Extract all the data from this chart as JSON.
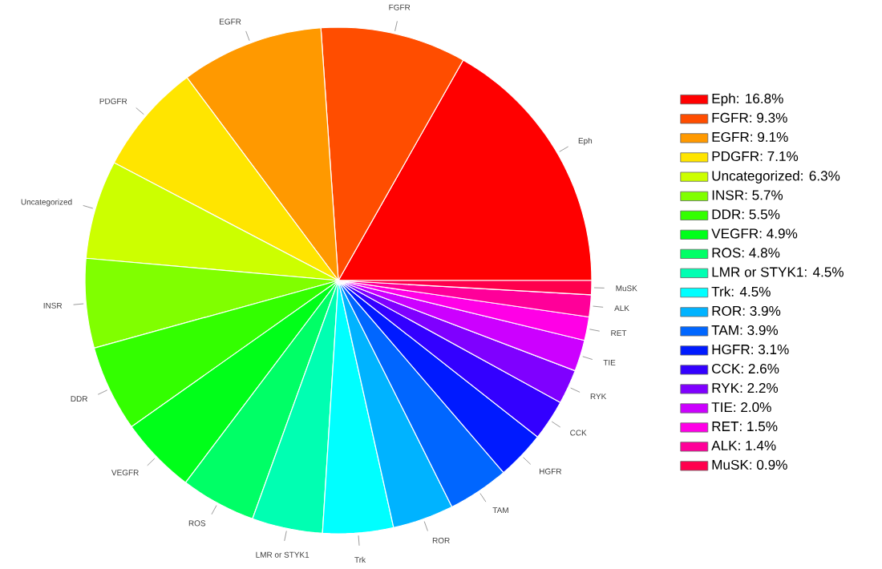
{
  "chart_data": {
    "type": "pie",
    "legend": "right",
    "categories": [
      "Eph",
      "FGFR",
      "EGFR",
      "PDGFR",
      "Uncategorized",
      "INSR",
      "DDR",
      "VEGFR",
      "ROS",
      "LMR or STYK1",
      "Trk",
      "ROR",
      "TAM",
      "HGFR",
      "CCK",
      "RYK",
      "TIE",
      "RET",
      "ALK",
      "MuSK"
    ],
    "values": [
      16.8,
      9.3,
      9.1,
      7.1,
      6.3,
      5.7,
      5.5,
      4.9,
      4.8,
      4.5,
      4.5,
      3.9,
      3.9,
      3.1,
      2.6,
      2.2,
      2.0,
      1.5,
      1.4,
      0.9
    ],
    "value_labels": [
      ": 16.8%",
      ": 9.3%",
      ": 9.1%",
      ": 7.1%",
      ": 6.3%",
      ": 5.7%",
      ": 5.5%",
      ": 4.9%",
      ": 4.8%",
      ": 4.5%",
      ": 4.5%",
      ": 3.9%",
      ": 3.9%",
      ": 3.1%",
      ": 2.6%",
      ": 2.2%",
      ": 2.0%",
      ": 1.5%",
      ": 1.4%",
      ": 0.9%"
    ],
    "colors": [
      "#ff0000",
      "#ff4d00",
      "#ff9900",
      "#ffe500",
      "#ccff00",
      "#80ff00",
      "#33ff00",
      "#00ff19",
      "#00ff66",
      "#00ffb2",
      "#00ffff",
      "#00b3ff",
      "#0066ff",
      "#001aff",
      "#3300ff",
      "#7f00ff",
      "#cc00ff",
      "#ff00e6",
      "#ff0099",
      "#ff004d"
    ]
  }
}
